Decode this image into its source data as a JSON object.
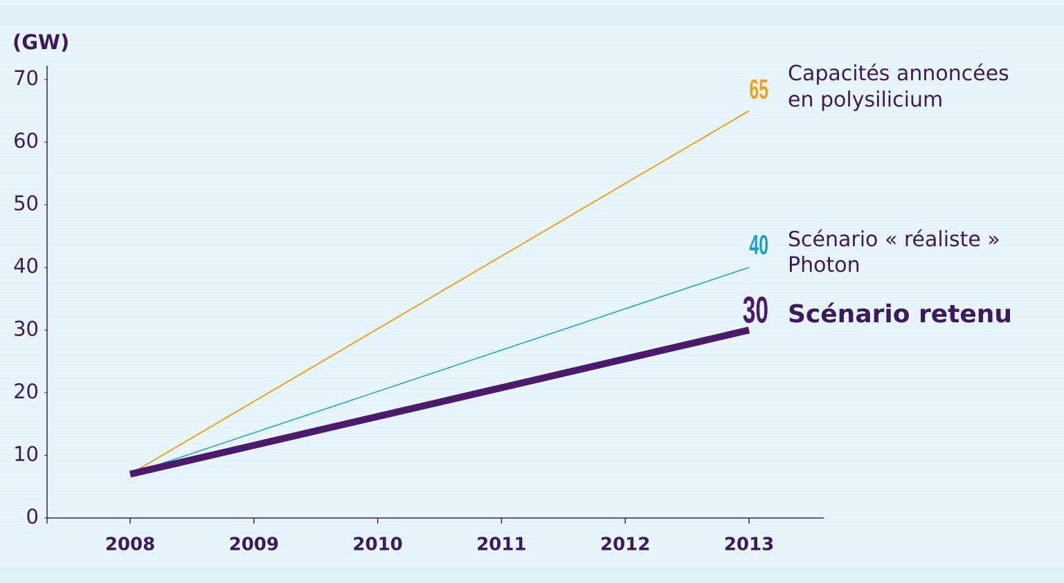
{
  "chart_data": {
    "type": "line",
    "y_label": "(GW)",
    "categories": [
      "2008",
      "2009",
      "2010",
      "2011",
      "2012",
      "2013"
    ],
    "series": [
      {
        "name": "Capacités annoncées\nen polysilicium",
        "color": "#f0a020",
        "values": [
          7,
          18.6,
          30.2,
          41.8,
          53.4,
          65
        ]
      },
      {
        "name": "Scénario « réaliste »\nPhoton",
        "color": "#1aa0c8",
        "values": [
          7,
          13.6,
          20.2,
          26.8,
          33.4,
          40
        ]
      },
      {
        "name": "Scénario retenu",
        "color": "#4b1a6b",
        "values": [
          7,
          11.6,
          16.2,
          20.8,
          25.4,
          30
        ]
      }
    ],
    "ylim": [
      0,
      70
    ],
    "yticks": [
      0,
      10,
      20,
      30,
      40,
      50,
      60,
      70
    ],
    "grid": false
  }
}
